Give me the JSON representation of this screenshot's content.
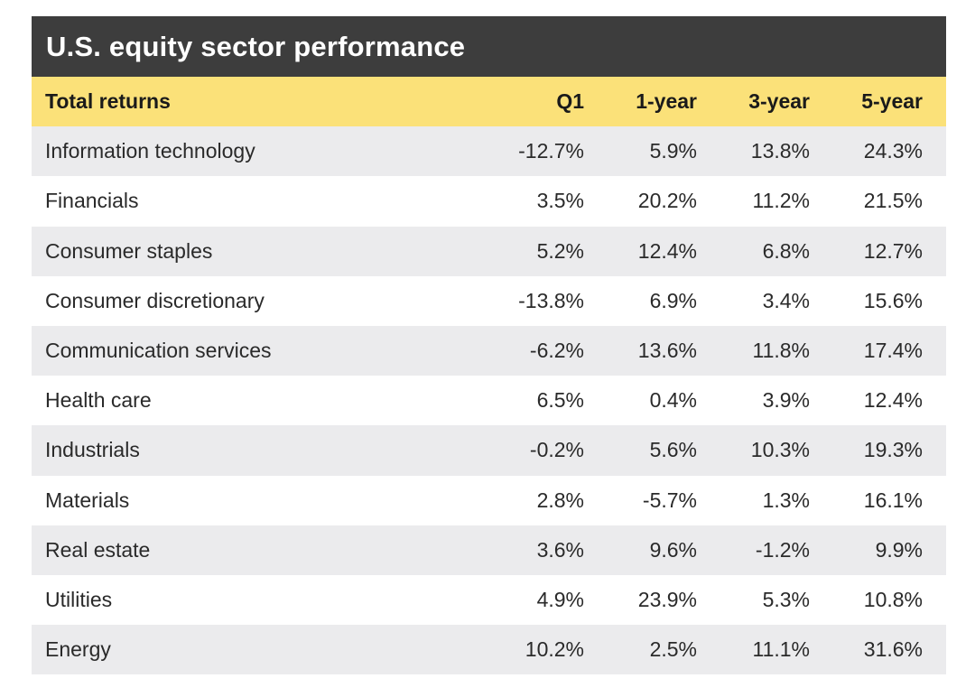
{
  "chart_data": {
    "type": "table",
    "title": "U.S. equity sector performance",
    "columns": [
      "Total returns",
      "Q1",
      "1-year",
      "3-year",
      "5-year"
    ],
    "rows": [
      {
        "sector": "Information technology",
        "values": [
          "-12.7%",
          "5.9%",
          "13.8%",
          "24.3%"
        ]
      },
      {
        "sector": "Financials",
        "values": [
          "3.5%",
          "20.2%",
          "11.2%",
          "21.5%"
        ]
      },
      {
        "sector": "Consumer staples",
        "values": [
          "5.2%",
          "12.4%",
          "6.8%",
          "12.7%"
        ]
      },
      {
        "sector": "Consumer discretionary",
        "values": [
          "-13.8%",
          "6.9%",
          "3.4%",
          "15.6%"
        ]
      },
      {
        "sector": "Communication services",
        "values": [
          "-6.2%",
          "13.6%",
          "11.8%",
          "17.4%"
        ]
      },
      {
        "sector": "Health care",
        "values": [
          "6.5%",
          "0.4%",
          "3.9%",
          "12.4%"
        ]
      },
      {
        "sector": "Industrials",
        "values": [
          "-0.2%",
          "5.6%",
          "10.3%",
          "19.3%"
        ]
      },
      {
        "sector": "Materials",
        "values": [
          "2.8%",
          "-5.7%",
          "1.3%",
          "16.1%"
        ]
      },
      {
        "sector": "Real estate",
        "values": [
          "3.6%",
          "9.6%",
          "-1.2%",
          "9.9%"
        ]
      },
      {
        "sector": "Utilities",
        "values": [
          "4.9%",
          "23.9%",
          "5.3%",
          "10.8%"
        ]
      },
      {
        "sector": "Energy",
        "values": [
          "10.2%",
          "2.5%",
          "11.1%",
          "31.6%"
        ]
      }
    ]
  },
  "colors": {
    "title_bg": "#3d3d3d",
    "header_bg": "#fbe179",
    "row_shade": "#ebebed",
    "row_plain": "#ffffff"
  }
}
